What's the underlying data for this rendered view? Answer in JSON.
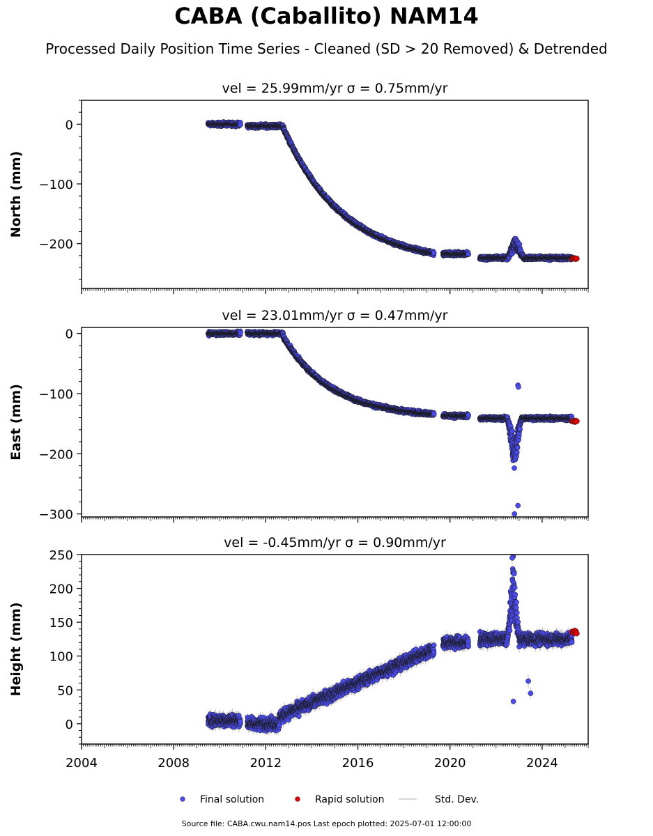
{
  "title": "CABA (Caballito) NAM14",
  "subtitle": "Processed Daily Position Time Series - Cleaned (SD > 20 Removed) & Detrended",
  "footer": "Source file: CABA.cwu.nam14.pos  Last epoch plotted: 2025-07-01 12:00:00",
  "colors": {
    "final": "#4a4aef",
    "rapid": "#e00000",
    "stddev": "#c8c8c8",
    "edge": "#1a1a1a"
  },
  "legend": [
    {
      "label": "Final solution",
      "marker": "dot",
      "color": "#4a4aef"
    },
    {
      "label": "Rapid solution",
      "marker": "dot",
      "color": "#e00000"
    },
    {
      "label": "Std. Dev.",
      "marker": "line",
      "color": "#c8c8c8"
    }
  ],
  "chart_data": [
    {
      "type": "scatter",
      "component": "north",
      "title": "vel = 25.99mm/yr   σ = 0.75mm/yr",
      "ylabel": "North (mm)",
      "xlim": [
        2004.0,
        2026.0
      ],
      "ylim": [
        -275,
        40
      ],
      "yticks": [
        0,
        -100,
        -200
      ],
      "ytick_labels": [
        "0",
        "−100",
        "−200"
      ],
      "yminor": 20,
      "xtick_labels_shown": false,
      "segments": [
        {
          "x0": 2009.5,
          "x1": 2010.9,
          "model": "flat",
          "level": 0
        },
        {
          "x0": 2011.2,
          "x1": 2012.75,
          "model": "flat",
          "level": -3
        },
        {
          "x0": 2012.75,
          "x1": 2019.3,
          "model": "decay",
          "t0": 2012.75,
          "start": -5,
          "asym": -235,
          "tau": 2.6
        },
        {
          "x0": 2019.7,
          "x1": 2020.8,
          "model": "flat",
          "level": -217
        },
        {
          "x0": 2021.3,
          "x1": 2025.3,
          "model": "flat",
          "level": -224
        }
      ],
      "anomaly": {
        "x0": 2022.5,
        "x1": 2023.2,
        "amp": 25
      },
      "rapid": {
        "x0": 2025.3,
        "x1": 2025.5,
        "level": -225
      }
    },
    {
      "type": "scatter",
      "component": "east",
      "title": "vel = 23.01mm/yr   σ = 0.47mm/yr",
      "ylabel": "East (mm)",
      "xlim": [
        2004.0,
        2026.0
      ],
      "ylim": [
        -305,
        10
      ],
      "yticks": [
        0,
        -100,
        -200,
        -300
      ],
      "ytick_labels": [
        "0",
        "−100",
        "−200",
        "−300"
      ],
      "yminor": 20,
      "xtick_labels_shown": false,
      "segments": [
        {
          "x0": 2009.5,
          "x1": 2010.9,
          "model": "flat",
          "level": 0
        },
        {
          "x0": 2011.2,
          "x1": 2012.75,
          "model": "flat",
          "level": 0
        },
        {
          "x0": 2012.75,
          "x1": 2019.3,
          "model": "decay",
          "t0": 2012.75,
          "start": -5,
          "asym": -140,
          "tau": 2.1
        },
        {
          "x0": 2019.7,
          "x1": 2020.8,
          "model": "flat",
          "level": -137
        },
        {
          "x0": 2021.3,
          "x1": 2025.3,
          "model": "flat",
          "level": -141
        }
      ],
      "anomaly": {
        "x0": 2022.5,
        "x1": 2023.1,
        "amp": -60
      },
      "outliers": [
        {
          "x": 2022.95,
          "y": -86
        },
        {
          "x": 2022.97,
          "y": -89
        },
        {
          "x": 2022.8,
          "y": -300
        },
        {
          "x": 2022.95,
          "y": -286
        }
      ],
      "rapid": {
        "x0": 2025.3,
        "x1": 2025.5,
        "level": -146
      }
    },
    {
      "type": "scatter",
      "component": "height",
      "title": "vel = -0.45mm/yr   σ = 0.90mm/yr",
      "ylabel": "Height (mm)",
      "xlim": [
        2004.0,
        2026.0
      ],
      "ylim": [
        -30,
        250
      ],
      "yticks": [
        0,
        50,
        100,
        150,
        200,
        250
      ],
      "ytick_labels": [
        "0",
        "50",
        "100",
        "150",
        "200",
        "250"
      ],
      "yminor": 10,
      "xticks": [
        2004,
        2008,
        2012,
        2016,
        2020,
        2024
      ],
      "xtick_labels": [
        "2004",
        "2008",
        "2012",
        "2016",
        "2020",
        "2024"
      ],
      "xtick_labels_shown": true,
      "segments": [
        {
          "x0": 2009.5,
          "x1": 2010.9,
          "model": "flat",
          "level": 5
        },
        {
          "x0": 2011.2,
          "x1": 2012.6,
          "model": "flat",
          "level": 0
        },
        {
          "x0": 2012.6,
          "x1": 2019.3,
          "model": "linear",
          "y0": 10,
          "y1": 110
        },
        {
          "x0": 2019.7,
          "x1": 2020.8,
          "model": "flat",
          "level": 120
        },
        {
          "x0": 2021.3,
          "x1": 2025.3,
          "model": "flat",
          "level": 125
        }
      ],
      "anomaly": {
        "x0": 2022.5,
        "x1": 2023.0,
        "amp": 80
      },
      "outliers": [
        {
          "x": 2022.75,
          "y": 33
        },
        {
          "x": 2022.7,
          "y": 245
        },
        {
          "x": 2023.5,
          "y": 45
        },
        {
          "x": 2023.4,
          "y": 63
        }
      ],
      "rapid": {
        "x0": 2025.3,
        "x1": 2025.5,
        "level": 135
      }
    }
  ]
}
